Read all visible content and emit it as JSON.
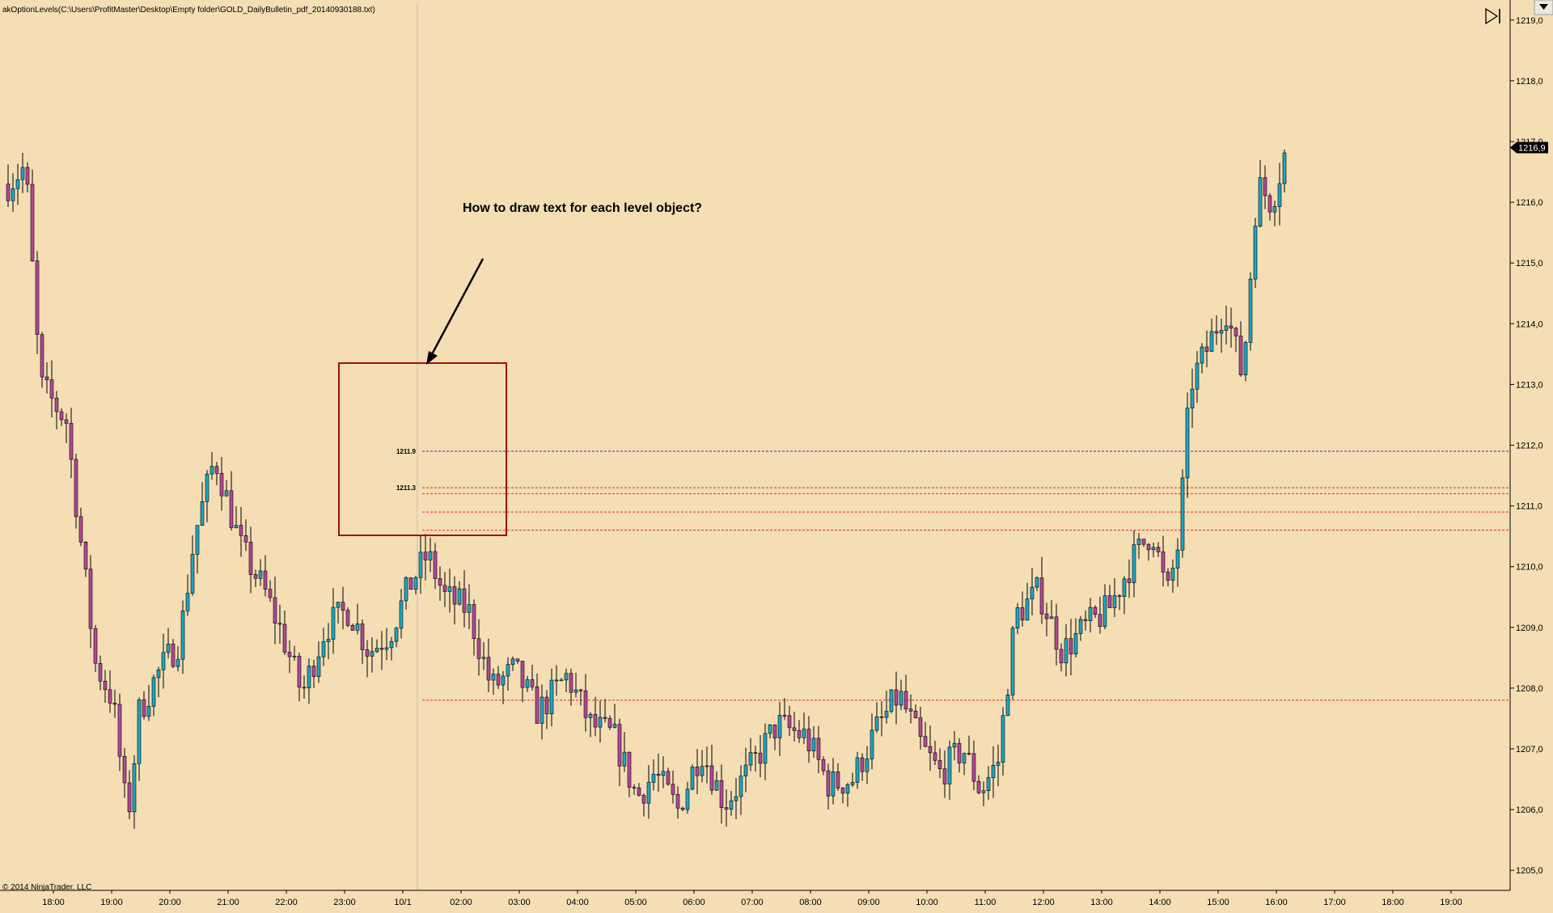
{
  "header": {
    "indicator_label": "akOptionLevels(C:\\Users\\ProfitMaster\\Desktop\\Empty folder\\GOLD_DailyBulletin_pdf_20140930188.txt)",
    "copyright": "© 2014 NinjaTrader, LLC",
    "play_icon": "step-forward-icon"
  },
  "annotation": {
    "question": "How to draw text for each level object?"
  },
  "colors": {
    "background": "#f5deb3",
    "up_candle": "#1fa6c2",
    "down_candle": "#b5479a",
    "wick": "#000000",
    "blue_level": "#3333cc",
    "red_level": "#e03030",
    "box": "#a01010",
    "arrow": "#000000"
  },
  "chart_data": {
    "type": "candlestick",
    "title": "",
    "ylabel": "",
    "xlabel": "",
    "ylim": [
      1204.67,
      1219.33
    ],
    "y_ticks": [
      "1205,0",
      "1206,0",
      "1207,0",
      "1208,0",
      "1209,0",
      "1210,0",
      "1211,0",
      "1212,0",
      "1213,0",
      "1214,0",
      "1215,0",
      "1216,0",
      "1217,0",
      "1218,0",
      "1219,0"
    ],
    "x_ticks": [
      "18:00",
      "19:00",
      "20:00",
      "21:00",
      "22:00",
      "23:00",
      "10/1",
      "02:00",
      "03:00",
      "04:00",
      "05:00",
      "06:00",
      "07:00",
      "08:00",
      "09:00",
      "10:00",
      "11:00",
      "12:00",
      "13:00",
      "14:00",
      "15:00",
      "16:00",
      "17:00",
      "18:00",
      "19:00"
    ],
    "last_price_label": "1216,9",
    "last_price": 1216.9,
    "levels": [
      {
        "value": 1211.9,
        "label": "1211.9",
        "color": "blue"
      },
      {
        "value": 1211.3,
        "label": "1211.3",
        "color": "red"
      },
      {
        "value": 1211.2,
        "label": "",
        "color": "red"
      },
      {
        "value": 1210.9,
        "label": "",
        "color": "red"
      },
      {
        "value": 1210.6,
        "label": "",
        "color": "red"
      },
      {
        "value": 1207.8,
        "label": "",
        "color": "red"
      }
    ],
    "close_path": [
      {
        "t": 0.0,
        "p": 1216.3
      },
      {
        "t": 0.3,
        "p": 1216.6
      },
      {
        "t": 0.55,
        "p": 1213.0
      },
      {
        "t": 1.0,
        "p": 1212.4
      },
      {
        "t": 1.5,
        "p": 1208.4
      },
      {
        "t": 1.8,
        "p": 1207.8
      },
      {
        "t": 2.05,
        "p": 1205.8
      },
      {
        "t": 2.25,
        "p": 1207.6
      },
      {
        "t": 2.55,
        "p": 1208.2
      },
      {
        "t": 2.95,
        "p": 1208.8
      },
      {
        "t": 3.2,
        "p": 1210.5
      },
      {
        "t": 3.55,
        "p": 1211.8
      },
      {
        "t": 4.0,
        "p": 1210.3
      },
      {
        "t": 4.4,
        "p": 1209.6
      },
      {
        "t": 4.7,
        "p": 1208.9
      },
      {
        "t": 5.05,
        "p": 1207.9
      },
      {
        "t": 5.45,
        "p": 1209.0
      },
      {
        "t": 5.85,
        "p": 1209.3
      },
      {
        "t": 6.2,
        "p": 1208.6
      },
      {
        "t": 6.55,
        "p": 1208.9
      },
      {
        "t": 6.9,
        "p": 1209.7
      },
      {
        "t": 7.2,
        "p": 1210.2
      },
      {
        "t": 7.5,
        "p": 1209.5
      },
      {
        "t": 7.9,
        "p": 1209.3
      },
      {
        "t": 8.3,
        "p": 1208.0
      },
      {
        "t": 8.7,
        "p": 1208.3
      },
      {
        "t": 9.1,
        "p": 1207.6
      },
      {
        "t": 9.6,
        "p": 1208.2
      },
      {
        "t": 10.0,
        "p": 1207.4
      },
      {
        "t": 10.4,
        "p": 1207.2
      },
      {
        "t": 10.8,
        "p": 1206.2
      },
      {
        "t": 11.1,
        "p": 1206.6
      },
      {
        "t": 11.5,
        "p": 1206.0
      },
      {
        "t": 11.9,
        "p": 1207.0
      },
      {
        "t": 12.3,
        "p": 1206.1
      },
      {
        "t": 12.7,
        "p": 1206.6
      },
      {
        "t": 13.2,
        "p": 1207.4
      },
      {
        "t": 13.7,
        "p": 1207.2
      },
      {
        "t": 14.1,
        "p": 1206.4
      },
      {
        "t": 14.5,
        "p": 1206.5
      },
      {
        "t": 14.9,
        "p": 1207.3
      },
      {
        "t": 15.3,
        "p": 1207.9
      },
      {
        "t": 15.7,
        "p": 1207.0
      },
      {
        "t": 16.0,
        "p": 1206.6
      },
      {
        "t": 16.4,
        "p": 1207.0
      },
      {
        "t": 16.7,
        "p": 1206.3
      },
      {
        "t": 17.0,
        "p": 1206.8
      },
      {
        "t": 17.3,
        "p": 1209.2
      },
      {
        "t": 17.7,
        "p": 1209.6
      },
      {
        "t": 18.1,
        "p": 1208.6
      },
      {
        "t": 18.5,
        "p": 1209.0
      },
      {
        "t": 18.9,
        "p": 1209.3
      },
      {
        "t": 19.3,
        "p": 1210.1
      },
      {
        "t": 19.65,
        "p": 1210.6
      },
      {
        "t": 19.9,
        "p": 1209.5
      },
      {
        "t": 20.1,
        "p": 1210.4
      },
      {
        "t": 20.3,
        "p": 1213.0
      },
      {
        "t": 20.55,
        "p": 1213.5
      },
      {
        "t": 20.9,
        "p": 1214.3
      },
      {
        "t": 21.2,
        "p": 1213.1
      },
      {
        "t": 21.45,
        "p": 1216.3
      },
      {
        "t": 21.7,
        "p": 1216.0
      },
      {
        "t": 21.95,
        "p": 1216.9
      }
    ]
  }
}
